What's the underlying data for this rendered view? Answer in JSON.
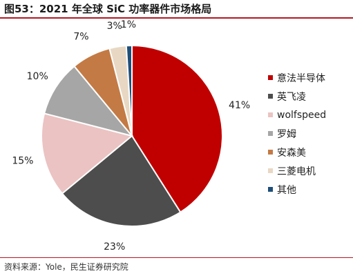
{
  "title": "图53：2021 年全球 SiC 功率器件市场格局",
  "source": "资料来源：Yole，民生证券研究院",
  "chart_data": {
    "type": "pie",
    "title": "图53：2021 年全球 SiC 功率器件市场格局",
    "start": "12 o'clock, clockwise",
    "legend_position": "right",
    "slices": [
      {
        "label": "意法半导体",
        "value": 41,
        "display": "41%",
        "color": "#c00000"
      },
      {
        "label": "英飞凌",
        "value": 23,
        "display": "23%",
        "color": "#4d4d4d"
      },
      {
        "label": "wolfspeed",
        "value": 15,
        "display": "15%",
        "color": "#ebc3c3"
      },
      {
        "label": "罗姆",
        "value": 10,
        "display": "10%",
        "color": "#a6a6a6"
      },
      {
        "label": "安森美",
        "value": 7,
        "display": "7%",
        "color": "#c47a44"
      },
      {
        "label": "三菱电机",
        "value": 3,
        "display": "3%",
        "color": "#e8d8c3"
      },
      {
        "label": "其他",
        "value": 1,
        "display": "1%",
        "color": "#1f4e79"
      }
    ]
  }
}
